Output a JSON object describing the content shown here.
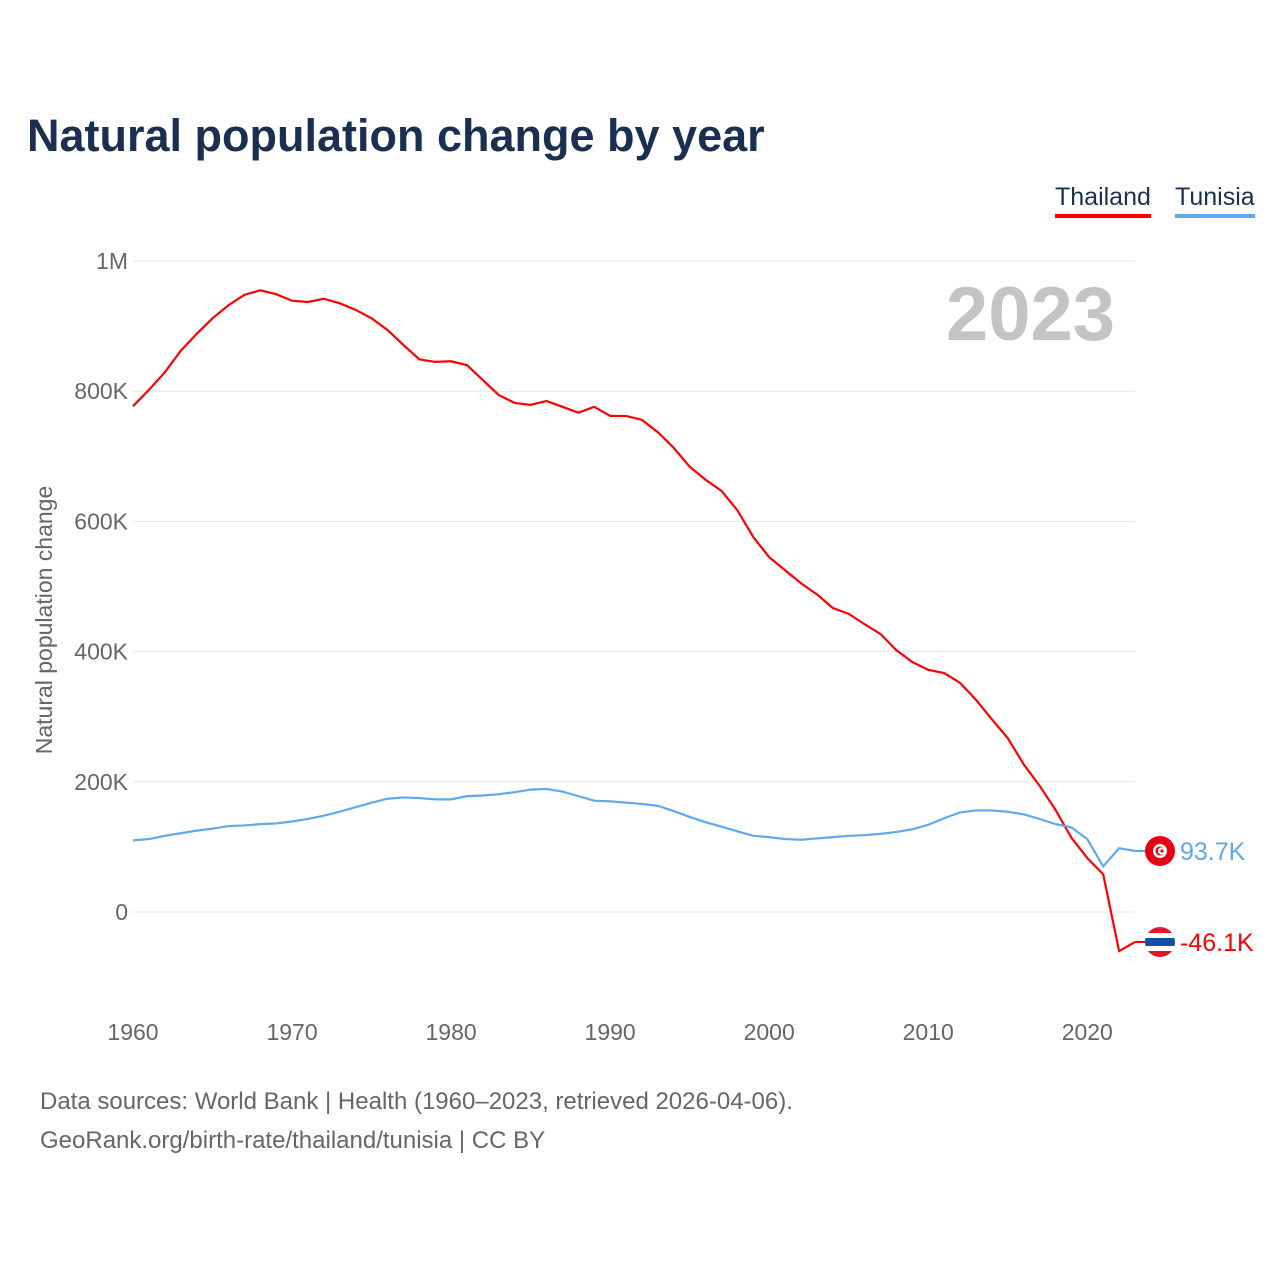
{
  "chart_data": {
    "type": "line",
    "title": "Natural population change by year",
    "ylabel": "Natural population change",
    "xlabel": "",
    "ylim": [
      -100000,
      1000000
    ],
    "xlim": [
      1960,
      2023
    ],
    "yticks": [
      0,
      200000,
      400000,
      600000,
      800000,
      1000000
    ],
    "ytick_labels": [
      "0",
      "200K",
      "400K",
      "600K",
      "800K",
      "1M"
    ],
    "xticks": [
      1960,
      1970,
      1980,
      1990,
      2000,
      2010,
      2020
    ],
    "xtick_labels": [
      "1960",
      "1970",
      "1980",
      "1990",
      "2000",
      "2010",
      "2020"
    ],
    "grid": true,
    "legend_position": "top-right",
    "year_label": "2023",
    "x_start": 1960,
    "series": [
      {
        "name": "Thailand",
        "color": "#ff0000",
        "end_label": "-46.1K",
        "flag": "thailand-flag",
        "values": [
          777,
          802,
          829,
          862,
          888,
          912,
          932,
          948,
          955,
          949,
          939,
          937,
          942,
          935,
          925,
          912,
          894,
          871,
          849,
          845,
          846,
          840,
          817,
          794,
          782,
          779,
          785,
          776,
          767,
          776,
          762,
          762,
          756,
          737,
          713,
          684,
          664,
          647,
          617,
          576,
          545,
          525,
          505,
          488,
          467,
          458,
          442,
          427,
          402,
          384,
          372,
          367,
          352,
          326,
          296,
          267,
          227,
          194,
          157,
          114,
          83,
          58,
          -60,
          -46.1
        ]
      },
      {
        "name": "Tunisia",
        "color": "#5ea8f0",
        "end_label": "93.7K",
        "flag": "tunisia-flag",
        "values": [
          110,
          112,
          117,
          121,
          125,
          128,
          132,
          133,
          135,
          136,
          139,
          143,
          148,
          154,
          161,
          168,
          174,
          176,
          175,
          173,
          173,
          178,
          179,
          181,
          184,
          188,
          189,
          185,
          178,
          171,
          170,
          168,
          166,
          163,
          155,
          146,
          138,
          131,
          124,
          117,
          115,
          112,
          111,
          113,
          115,
          117,
          118,
          120,
          123,
          127,
          134,
          144,
          153,
          156,
          156,
          154,
          150,
          143,
          135,
          130,
          112,
          70,
          98,
          93.7
        ]
      }
    ],
    "value_unit": "thousands"
  },
  "footer": {
    "line1": "Data sources: World Bank | Health (1960–2023, retrieved 2026-04-06).",
    "line2": "GeoRank.org/birth-rate/thailand/tunisia | CC BY"
  }
}
